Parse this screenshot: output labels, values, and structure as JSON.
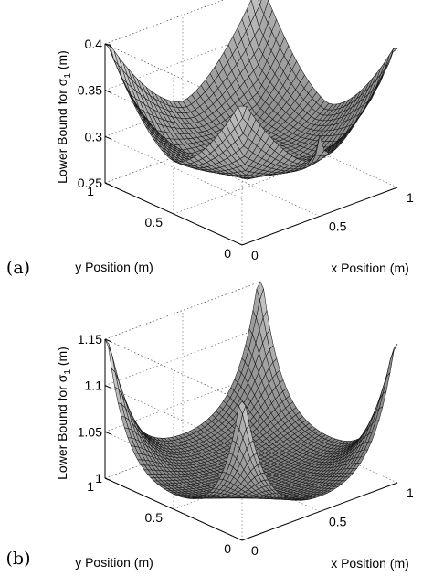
{
  "chart_data": [
    {
      "type": "surface",
      "panel_label": "(a)",
      "xlabel": "x Position (m)",
      "ylabel": "y Position (m)",
      "zlabel_prefix": "Lower Bound for σ",
      "zlabel_sub": "1",
      "zlabel_suffix": " (m)",
      "xlim": [
        0,
        1
      ],
      "ylim": [
        0,
        1
      ],
      "zlim": [
        0.25,
        0.4
      ],
      "x_ticks": [
        "0",
        "0.5",
        "1"
      ],
      "y_ticks": [
        "0",
        "0.5",
        "1"
      ],
      "z_ticks": [
        "0.25",
        "0.3",
        "0.35",
        "0.4"
      ],
      "grid": true,
      "surface": {
        "corner_value": 0.4,
        "edge_midpoint_value": 0.29,
        "center_value": 0.3,
        "minimum_value": 0.27,
        "edge_spike_value": 0.305
      }
    },
    {
      "type": "surface",
      "panel_label": "(b)",
      "xlabel": "x Position (m)",
      "ylabel": "y Position (m)",
      "zlabel_prefix": "Lower Bound for σ",
      "zlabel_sub": "1",
      "zlabel_suffix": " (m)",
      "xlim": [
        0,
        1
      ],
      "ylim": [
        0,
        1
      ],
      "zlim": [
        1,
        1.15
      ],
      "x_ticks": [
        "0",
        "0.5",
        "1"
      ],
      "y_ticks": [
        "0",
        "0.5",
        "1"
      ],
      "z_ticks": [
        "1",
        "1.05",
        "1.1",
        "1.15"
      ],
      "grid": true,
      "surface": {
        "corner_value": 1.15,
        "center_value": 1.0,
        "edge_midpoint_value": 1.01
      }
    }
  ]
}
